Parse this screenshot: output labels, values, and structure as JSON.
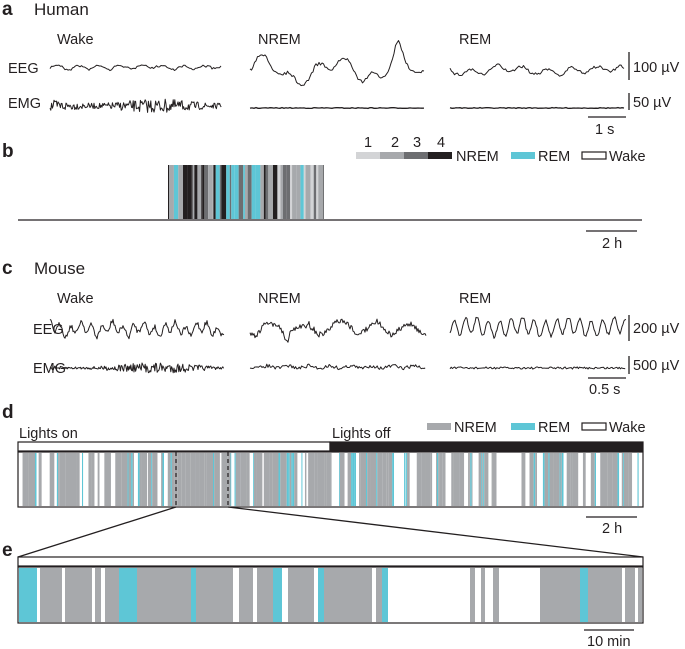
{
  "colors": {
    "nrem1": "#d3d4d6",
    "nrem2": "#a7a9ac",
    "nrem3": "#6d6e71",
    "nrem4": "#231f20",
    "nrem_mouse": "#a7a9ac",
    "rem": "#5ec6d6",
    "wake": "#ffffff",
    "ink": "#231f20"
  },
  "panel_a": {
    "letter": "a",
    "title": "Human",
    "states": [
      "Wake",
      "NREM",
      "REM"
    ],
    "rows": [
      "EEG",
      "EMG"
    ],
    "scales": [
      "100 µV",
      "50 µV"
    ],
    "time_bar": "1 s"
  },
  "panel_b": {
    "letter": "b",
    "stage_numbers": [
      "1",
      "2",
      "3",
      "4"
    ],
    "legend": [
      "NREM",
      "REM",
      "Wake"
    ],
    "time_bar": "2 h"
  },
  "panel_c": {
    "letter": "c",
    "title": "Mouse",
    "states": [
      "Wake",
      "NREM",
      "REM"
    ],
    "rows": [
      "EEG",
      "EMG"
    ],
    "scales": [
      "200 µV",
      "500 µV"
    ],
    "time_bar": "0.5 s"
  },
  "panel_d": {
    "letter": "d",
    "lights_on": "Lights on",
    "lights_off": "Lights off",
    "legend": [
      "NREM",
      "REM",
      "Wake"
    ],
    "time_bar": "2 h"
  },
  "panel_e": {
    "letter": "e",
    "time_bar": "10 min"
  }
}
